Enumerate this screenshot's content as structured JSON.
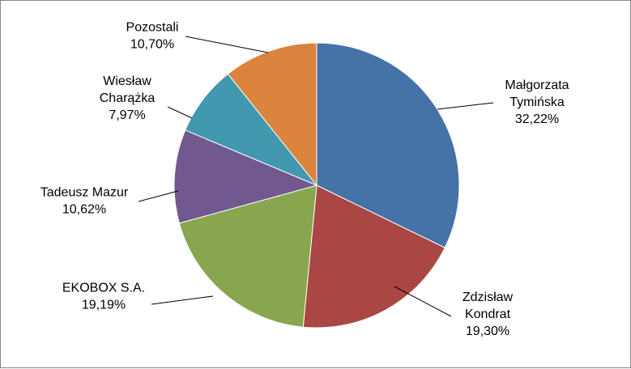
{
  "chart_data": {
    "type": "pie",
    "title": "",
    "start_angle_deg": 0,
    "direction": "clockwise",
    "slices": [
      {
        "lines": [
          "Małgorzata",
          "Tymińska"
        ],
        "value": 32.22,
        "pct_label": "32,22%",
        "color": "#4572A7"
      },
      {
        "lines": [
          "Zdzisław",
          "Kondrat"
        ],
        "value": 19.3,
        "pct_label": "19,30%",
        "color": "#AA4643"
      },
      {
        "lines": [
          "EKOBOX S.A."
        ],
        "value": 19.19,
        "pct_label": "19,19%",
        "color": "#89A54E"
      },
      {
        "lines": [
          "Tadeusz Mazur"
        ],
        "value": 10.62,
        "pct_label": "10,62%",
        "color": "#71588F"
      },
      {
        "lines": [
          "Wiesław",
          "Charążka"
        ],
        "value": 7.97,
        "pct_label": "7,97%",
        "color": "#4198AF"
      },
      {
        "lines": [
          "Pozostali"
        ],
        "value": 10.7,
        "pct_label": "10,70%",
        "color": "#DB843D"
      }
    ]
  }
}
